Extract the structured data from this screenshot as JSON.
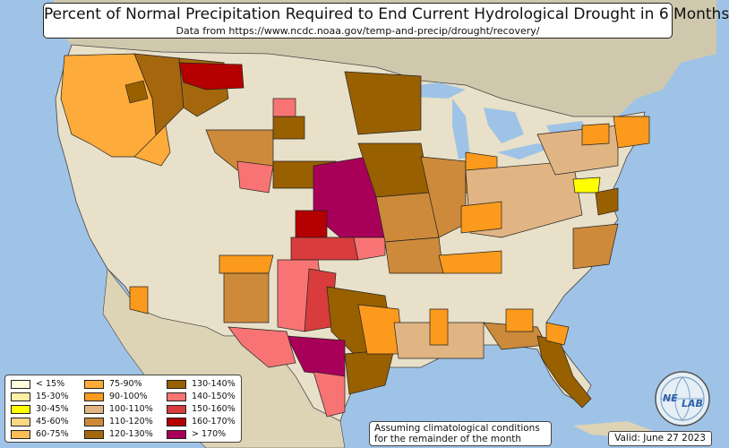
{
  "header": {
    "title": "Percent of Normal Precipitation Required to End Current Hydrological Drought in 6 Months",
    "subtitle": "Data from https://www.ncdc.noaa.gov/temp-and-precip/drought/recovery/"
  },
  "legend": {
    "items": [
      {
        "label": "< 15%",
        "color": "#fffde0"
      },
      {
        "label": "15-30%",
        "color": "#fdf0a6"
      },
      {
        "label": "30-45%",
        "color": "#ffff00"
      },
      {
        "label": "45-60%",
        "color": "#fdd882"
      },
      {
        "label": "60-75%",
        "color": "#fbbd58"
      },
      {
        "label": "75-90%",
        "color": "#fdab3a"
      },
      {
        "label": "90-100%",
        "color": "#fb9a1c"
      },
      {
        "label": "100-110%",
        "color": "#e1b483"
      },
      {
        "label": "110-120%",
        "color": "#cd8a3b"
      },
      {
        "label": "120-130%",
        "color": "#a5670e"
      },
      {
        "label": "130-140%",
        "color": "#996000"
      },
      {
        "label": "140-150%",
        "color": "#f87474"
      },
      {
        "label": "150-160%",
        "color": "#d83c3c"
      },
      {
        "label": "160-170%",
        "color": "#b40000"
      },
      {
        "label": "> 170%",
        "color": "#a80058"
      }
    ]
  },
  "note": {
    "line1": "Assuming climatological conditions",
    "line2": "for the remainder of the month"
  },
  "valid": "Valid: June 27 2023",
  "logo": {
    "text_left": "NE",
    "text_right": "LAB",
    "icon": "globe-logo-icon"
  },
  "colors": {
    "ocean": "#9fc3e6",
    "land": "#e8e0c8",
    "land_shaded": "#d9d2b6",
    "border": "#222222"
  }
}
